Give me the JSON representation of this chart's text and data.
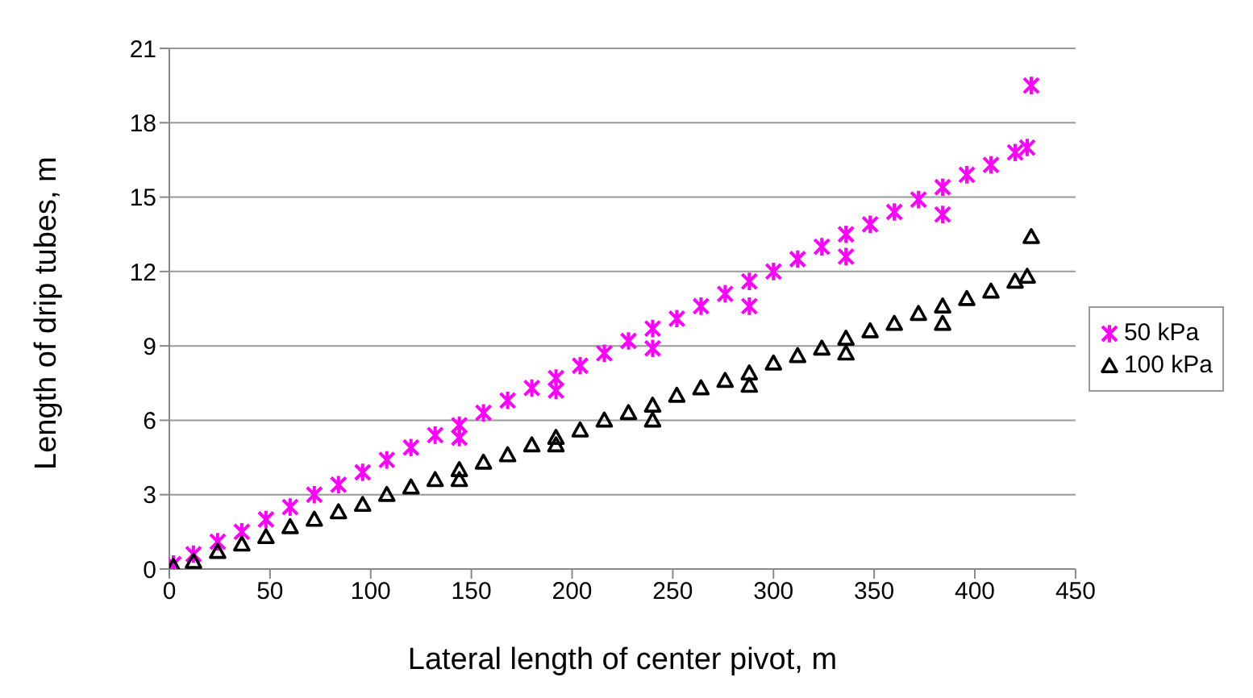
{
  "chart_data": {
    "type": "scatter",
    "xlabel": "Lateral length of center pivot, m",
    "ylabel": "Length of drip tubes, m",
    "xlim": [
      0,
      450
    ],
    "xticks": [
      0,
      50,
      100,
      150,
      200,
      250,
      300,
      350,
      400,
      450
    ],
    "ylim": [
      0,
      21
    ],
    "yticks": [
      0,
      3,
      6,
      9,
      12,
      15,
      18,
      21
    ],
    "grid": "y",
    "legend": "right",
    "series": [
      {
        "name": "50 kPa",
        "color": "#ff00ff",
        "marker": "cross",
        "x": [
          2,
          12,
          24,
          36,
          48,
          60,
          72,
          84,
          96,
          108,
          120,
          132,
          144,
          156,
          168,
          180,
          192,
          204,
          216,
          228,
          240,
          252,
          264,
          276,
          288,
          300,
          312,
          324,
          336,
          348,
          360,
          372,
          384,
          396,
          408,
          420,
          426,
          144,
          192,
          240,
          288,
          336,
          384,
          428
        ],
        "values": [
          0.2,
          0.6,
          1.1,
          1.5,
          2.0,
          2.5,
          3.0,
          3.4,
          3.9,
          4.4,
          4.9,
          5.4,
          5.8,
          6.3,
          6.8,
          7.3,
          7.7,
          8.2,
          8.7,
          9.2,
          9.7,
          10.1,
          10.6,
          11.1,
          11.6,
          12.0,
          12.5,
          13.0,
          13.5,
          13.9,
          14.4,
          14.9,
          15.4,
          15.9,
          16.3,
          16.8,
          17.0,
          5.3,
          7.2,
          8.9,
          10.6,
          12.6,
          14.3,
          19.5
        ]
      },
      {
        "name": "100 kPa",
        "color": "#000000",
        "marker": "triangle",
        "x": [
          2,
          12,
          24,
          36,
          48,
          60,
          72,
          84,
          96,
          108,
          120,
          132,
          144,
          156,
          168,
          180,
          192,
          204,
          216,
          228,
          240,
          252,
          264,
          276,
          288,
          300,
          312,
          324,
          336,
          348,
          360,
          372,
          384,
          396,
          408,
          420,
          426,
          144,
          192,
          240,
          288,
          336,
          384,
          428
        ],
        "values": [
          0.1,
          0.3,
          0.7,
          1.0,
          1.3,
          1.7,
          2.0,
          2.3,
          2.6,
          3.0,
          3.3,
          3.6,
          4.0,
          4.3,
          4.6,
          5.0,
          5.3,
          5.6,
          6.0,
          6.3,
          6.6,
          7.0,
          7.3,
          7.6,
          7.9,
          8.3,
          8.6,
          8.9,
          9.3,
          9.6,
          9.9,
          10.3,
          10.6,
          10.9,
          11.2,
          11.6,
          11.8,
          3.6,
          5.0,
          6.0,
          7.4,
          8.7,
          9.9,
          13.4
        ]
      }
    ]
  }
}
